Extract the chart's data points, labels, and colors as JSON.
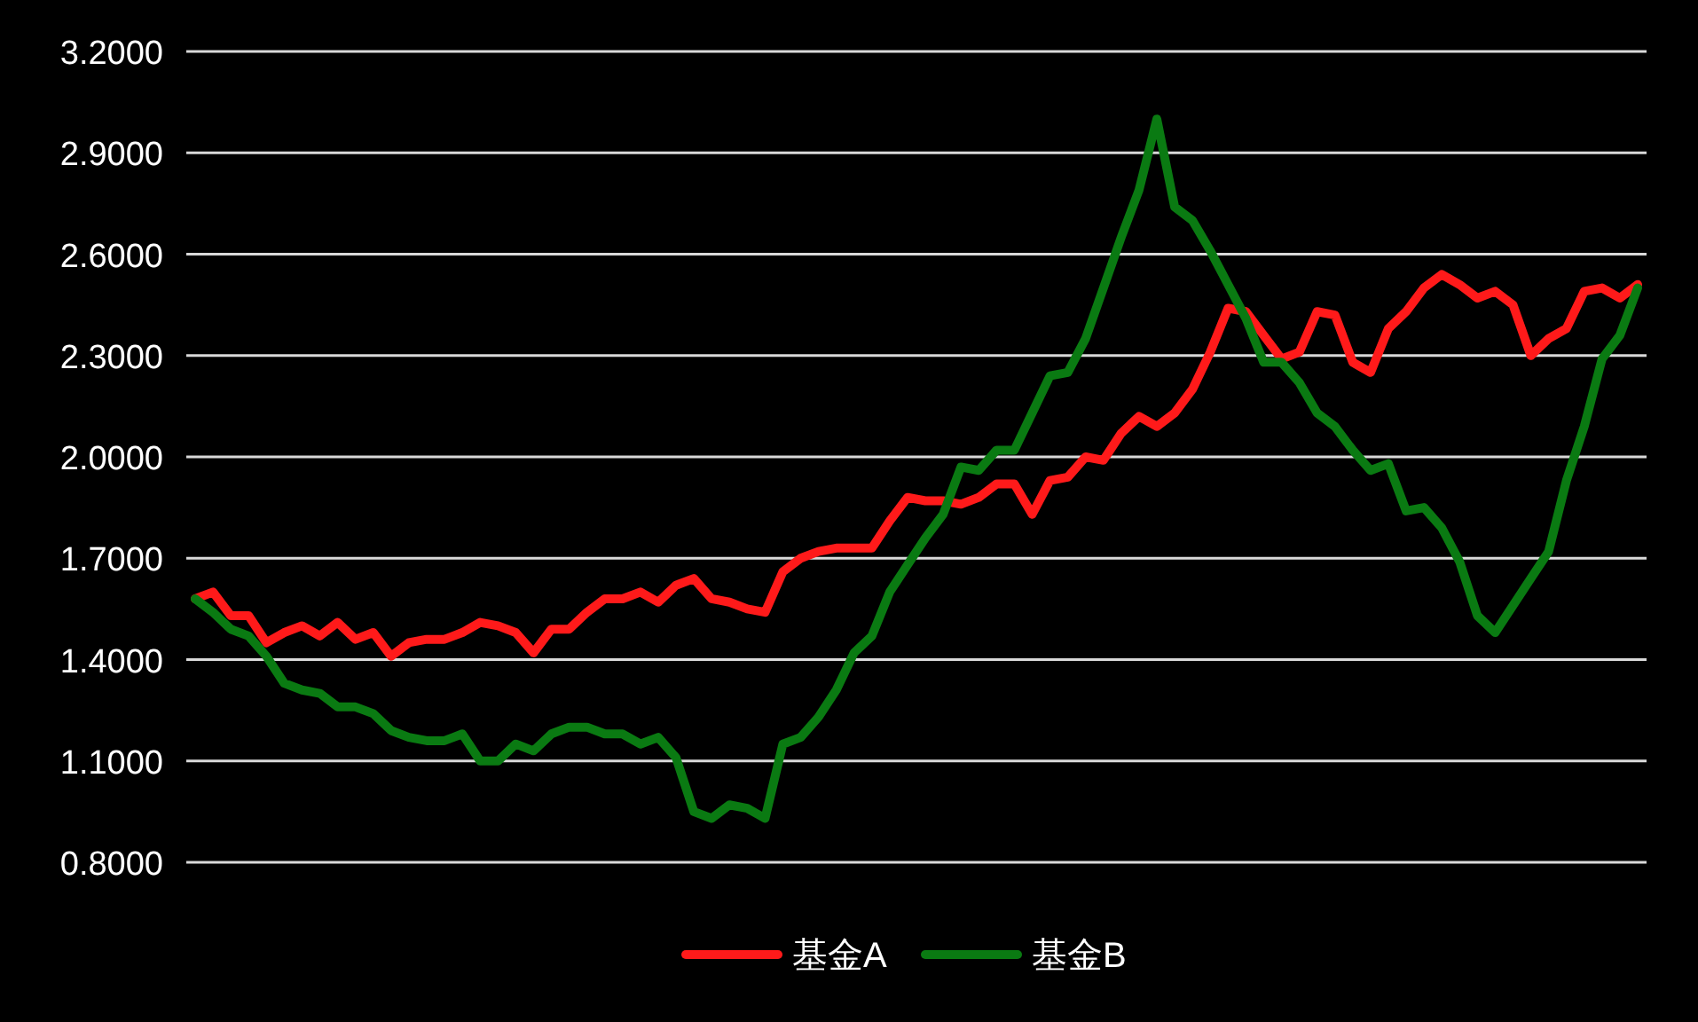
{
  "chart_data": {
    "type": "line",
    "categories": [
      null,
      null,
      null,
      null,
      null,
      null,
      null,
      null,
      null,
      null,
      null,
      null,
      null,
      null,
      null,
      null,
      null,
      null,
      null,
      null,
      null,
      null,
      null,
      null,
      null,
      null,
      null,
      null,
      null,
      null,
      null,
      null,
      null,
      null,
      null,
      null,
      null,
      null,
      null,
      null,
      null,
      null,
      null,
      null,
      null,
      null,
      null,
      null,
      null,
      null,
      null,
      null,
      null,
      null,
      null,
      null,
      null,
      null,
      null,
      null,
      null,
      null,
      null,
      null,
      null,
      null,
      null,
      null,
      null,
      null,
      null,
      null,
      null,
      null,
      null,
      null,
      null,
      null,
      null,
      null,
      null,
      null
    ],
    "series": [
      {
        "name": "基金A",
        "color": "#ff1a1a",
        "values": [
          1.58,
          1.6,
          1.53,
          1.53,
          1.45,
          1.48,
          1.5,
          1.47,
          1.51,
          1.46,
          1.48,
          1.41,
          1.45,
          1.46,
          1.46,
          1.48,
          1.51,
          1.5,
          1.48,
          1.42,
          1.49,
          1.49,
          1.54,
          1.58,
          1.58,
          1.6,
          1.57,
          1.62,
          1.64,
          1.58,
          1.57,
          1.55,
          1.54,
          1.66,
          1.7,
          1.72,
          1.73,
          1.73,
          1.73,
          1.81,
          1.88,
          1.87,
          1.87,
          1.86,
          1.88,
          1.92,
          1.92,
          1.83,
          1.93,
          1.94,
          2.0,
          1.99,
          2.07,
          2.12,
          2.09,
          2.13,
          2.2,
          2.31,
          2.44,
          2.43,
          2.36,
          2.29,
          2.31,
          2.43,
          2.42,
          2.28,
          2.25,
          2.38,
          2.43,
          2.5,
          2.54,
          2.51,
          2.47,
          2.49,
          2.45,
          2.3,
          2.35,
          2.38,
          2.49,
          2.5,
          2.47,
          2.51
        ]
      },
      {
        "name": "基金B",
        "color": "#0a7a12",
        "values": [
          1.58,
          1.54,
          1.49,
          1.47,
          1.41,
          1.33,
          1.31,
          1.3,
          1.26,
          1.26,
          1.24,
          1.19,
          1.17,
          1.16,
          1.16,
          1.18,
          1.1,
          1.1,
          1.15,
          1.13,
          1.18,
          1.2,
          1.2,
          1.18,
          1.18,
          1.15,
          1.17,
          1.11,
          0.95,
          0.93,
          0.97,
          0.96,
          0.93,
          1.15,
          1.17,
          1.23,
          1.31,
          1.42,
          1.47,
          1.6,
          1.68,
          1.76,
          1.83,
          1.97,
          1.96,
          2.02,
          2.02,
          2.13,
          2.24,
          2.25,
          2.35,
          2.5,
          2.65,
          2.79,
          3.0,
          2.74,
          2.7,
          2.61,
          2.51,
          2.41,
          2.28,
          2.28,
          2.22,
          2.13,
          2.09,
          2.02,
          1.96,
          1.98,
          1.84,
          1.85,
          1.79,
          1.69,
          1.53,
          1.48,
          1.56,
          1.64,
          1.72,
          1.93,
          2.09,
          2.29,
          2.36,
          2.5
        ]
      }
    ],
    "ylim": [
      0.8,
      3.2
    ],
    "yticks": [
      {
        "value": 0.8,
        "label": "0.8000"
      },
      {
        "value": 1.1,
        "label": "1.1000"
      },
      {
        "value": 1.4,
        "label": "1.4000"
      },
      {
        "value": 1.7,
        "label": "1.7000"
      },
      {
        "value": 2.0,
        "label": "2.0000"
      },
      {
        "value": 2.3,
        "label": "2.3000"
      },
      {
        "value": 2.6,
        "label": "2.6000"
      },
      {
        "value": 2.9,
        "label": "2.9000"
      },
      {
        "value": 3.2,
        "label": "3.2000"
      }
    ],
    "grid": "y",
    "legend": "bottom",
    "tick_labels": "y"
  }
}
